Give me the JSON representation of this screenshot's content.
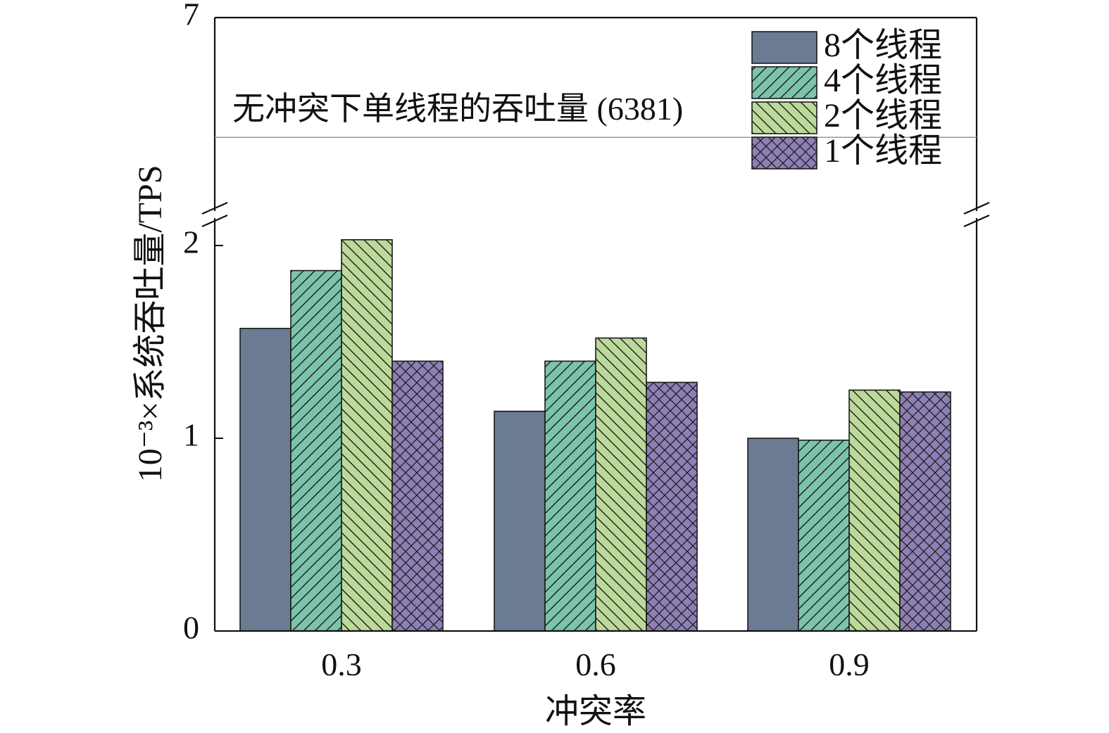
{
  "chart_data": {
    "type": "bar",
    "title": "",
    "xlabel": "冲突率",
    "ylabel": "10⁻³×系统吞吐量/TPS",
    "categories": [
      "0.3",
      "0.6",
      "0.9"
    ],
    "series": [
      {
        "name": "8个线程",
        "values": [
          1.57,
          1.14,
          1.0
        ],
        "color": "#6a7b92",
        "pattern": "solid"
      },
      {
        "name": "4个线程",
        "values": [
          1.87,
          1.4,
          0.99
        ],
        "color": "#7cc3ac",
        "pattern": "diag-up"
      },
      {
        "name": "2个线程",
        "values": [
          2.03,
          1.52,
          1.25
        ],
        "color": "#bcd99a",
        "pattern": "diag-down"
      },
      {
        "name": "1个线程",
        "values": [
          1.4,
          1.29,
          1.24
        ],
        "color": "#8e7fb5",
        "pattern": "cross"
      }
    ],
    "yticks": [
      "0",
      "1",
      "2",
      "7"
    ],
    "ylim": [
      0,
      7
    ],
    "axis_break": [
      2.1,
      6.0
    ],
    "reference_line": {
      "label": "无冲突下单线程的吞吐量 (6381)",
      "value": 6.381
    },
    "legend_position": "top-right",
    "grid": false
  }
}
